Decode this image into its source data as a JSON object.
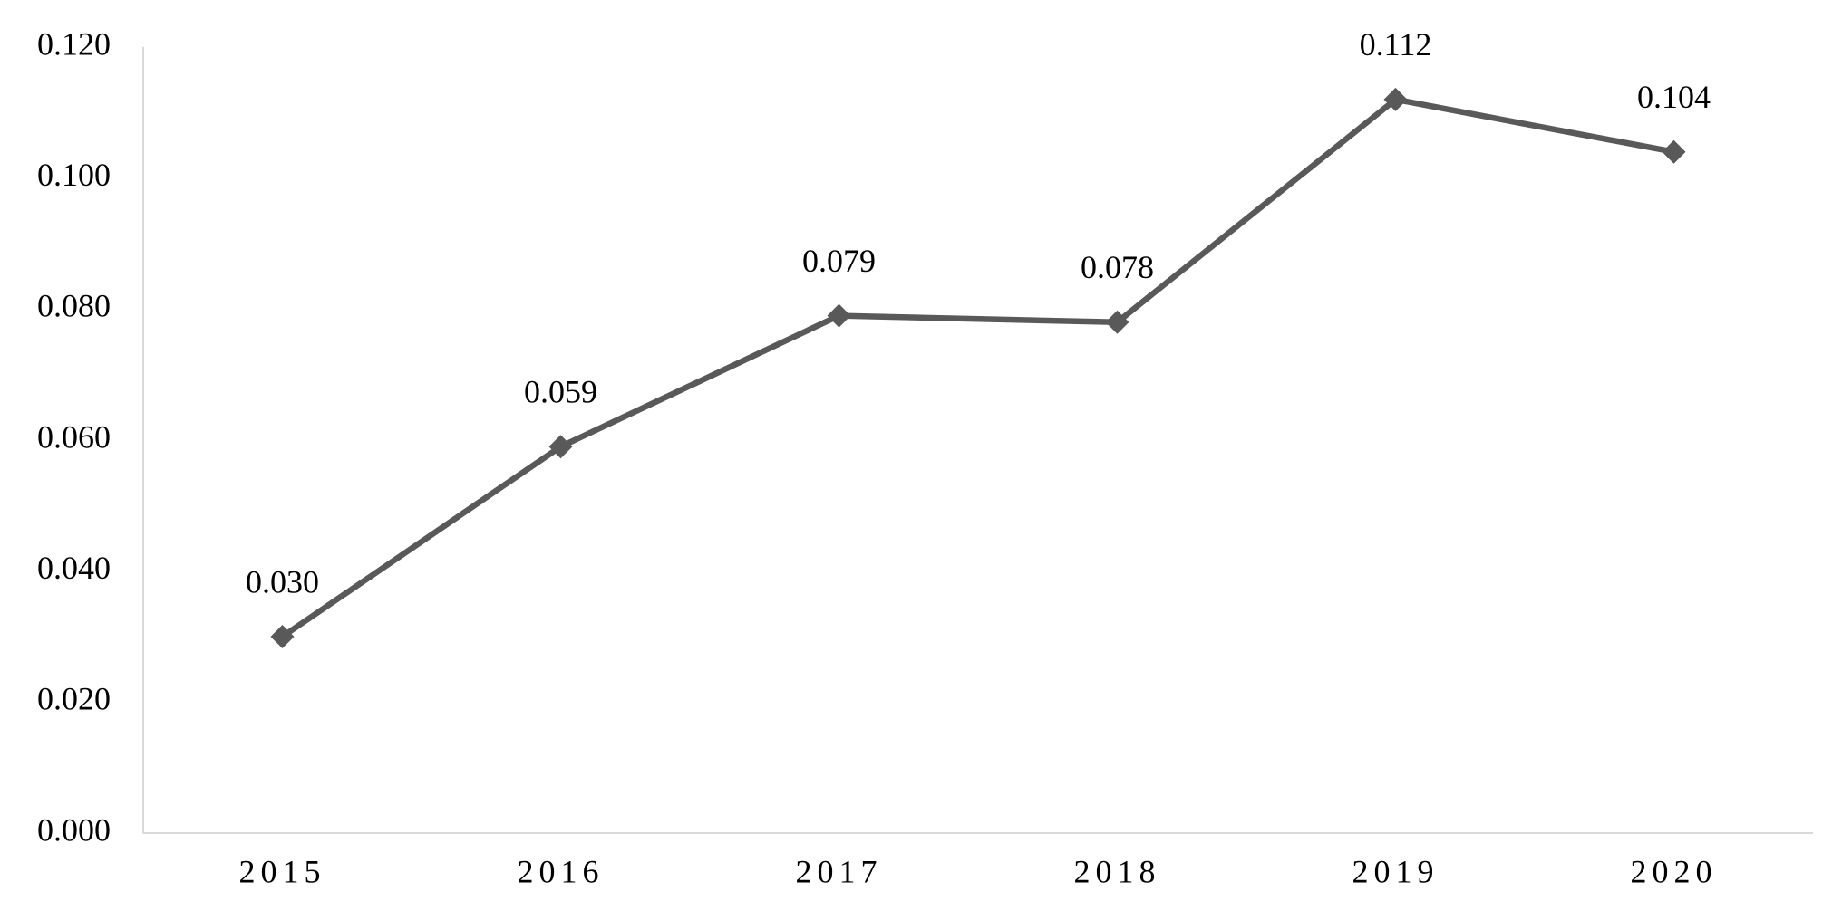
{
  "chart_data": {
    "type": "line",
    "categories": [
      "2015",
      "2016",
      "2017",
      "2018",
      "2019",
      "2020"
    ],
    "series": [
      {
        "color": "#595959",
        "values": [
          0.03,
          0.059,
          0.079,
          0.078,
          0.112,
          0.104
        ],
        "value_labels": [
          "0.030",
          "0.059",
          "0.079",
          "0.078",
          "0.112",
          "0.104"
        ]
      }
    ],
    "ylim": [
      0,
      0.12
    ],
    "yticks": [
      {
        "value": 0,
        "label": "0.000"
      },
      {
        "value": 0.02,
        "label": "0.020"
      },
      {
        "value": 0.04,
        "label": "0.040"
      },
      {
        "value": 0.06,
        "label": "0.060"
      },
      {
        "value": 0.08,
        "label": "0.080"
      },
      {
        "value": 0.1,
        "label": "0.100"
      },
      {
        "value": 0.12,
        "label": "0.120"
      }
    ],
    "grid": false
  }
}
